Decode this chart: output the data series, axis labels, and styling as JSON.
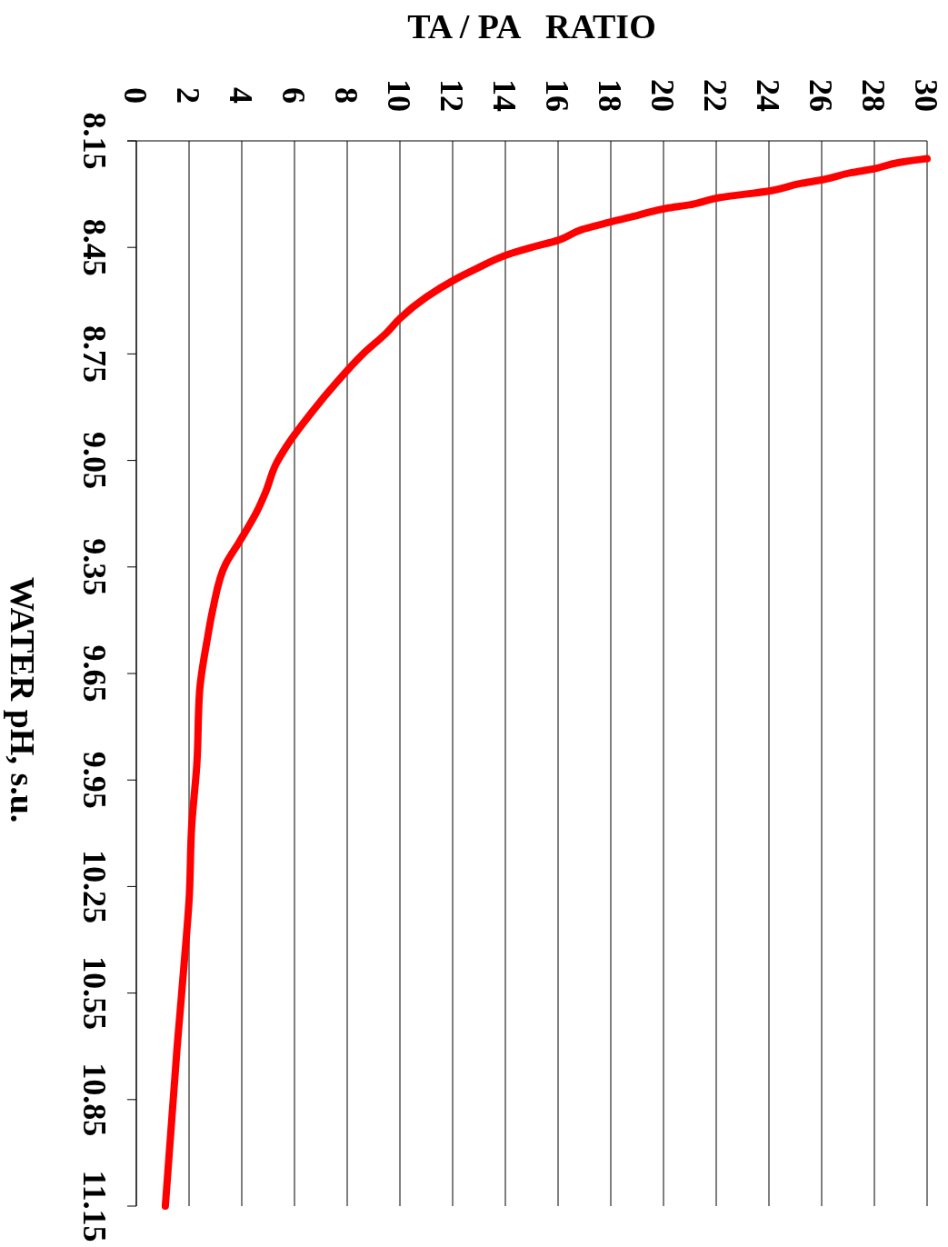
{
  "chart_data": {
    "type": "line",
    "xlabel": "TA / PA   RATIO",
    "ylabel": "WATER pH, s.u.",
    "xlim": [
      0,
      30
    ],
    "xticks": [
      0,
      2,
      4,
      6,
      8,
      10,
      12,
      14,
      16,
      18,
      20,
      22,
      24,
      26,
      28,
      30
    ],
    "ylim": [
      11.15,
      8.15
    ],
    "yticks": [
      8.15,
      8.45,
      8.75,
      9.05,
      9.35,
      9.65,
      9.95,
      10.25,
      10.55,
      10.85,
      11.15
    ],
    "grid": "x",
    "marker": "none",
    "line_style": "solid",
    "series": [
      {
        "color": "#ff0000",
        "x": [
          30,
          29,
          27.9,
          27.1,
          26,
          25.2,
          24.1,
          22.1,
          21,
          20.1,
          19,
          17.9,
          16.9,
          16,
          15,
          14.1,
          12.9,
          12.1,
          11,
          10,
          9.5,
          8.6,
          7.6,
          6.7,
          5.7,
          5.3,
          4.9,
          4.6,
          3.9,
          3.4,
          2.9,
          2.7,
          2.4,
          2.3,
          2.1,
          2,
          1.9,
          1.55,
          1.1
        ],
        "values": [
          8.2,
          8.21,
          8.23,
          8.24,
          8.26,
          8.27,
          8.29,
          8.31,
          8.33,
          8.34,
          8.36,
          8.38,
          8.4,
          8.43,
          8.45,
          8.47,
          8.51,
          8.54,
          8.59,
          8.65,
          8.69,
          8.75,
          8.83,
          8.91,
          9.01,
          9.06,
          9.14,
          9.19,
          9.28,
          9.34,
          9.47,
          9.55,
          9.7,
          9.9,
          10.08,
          10.29,
          10.39,
          10.7,
          11.15
        ]
      }
    ]
  }
}
